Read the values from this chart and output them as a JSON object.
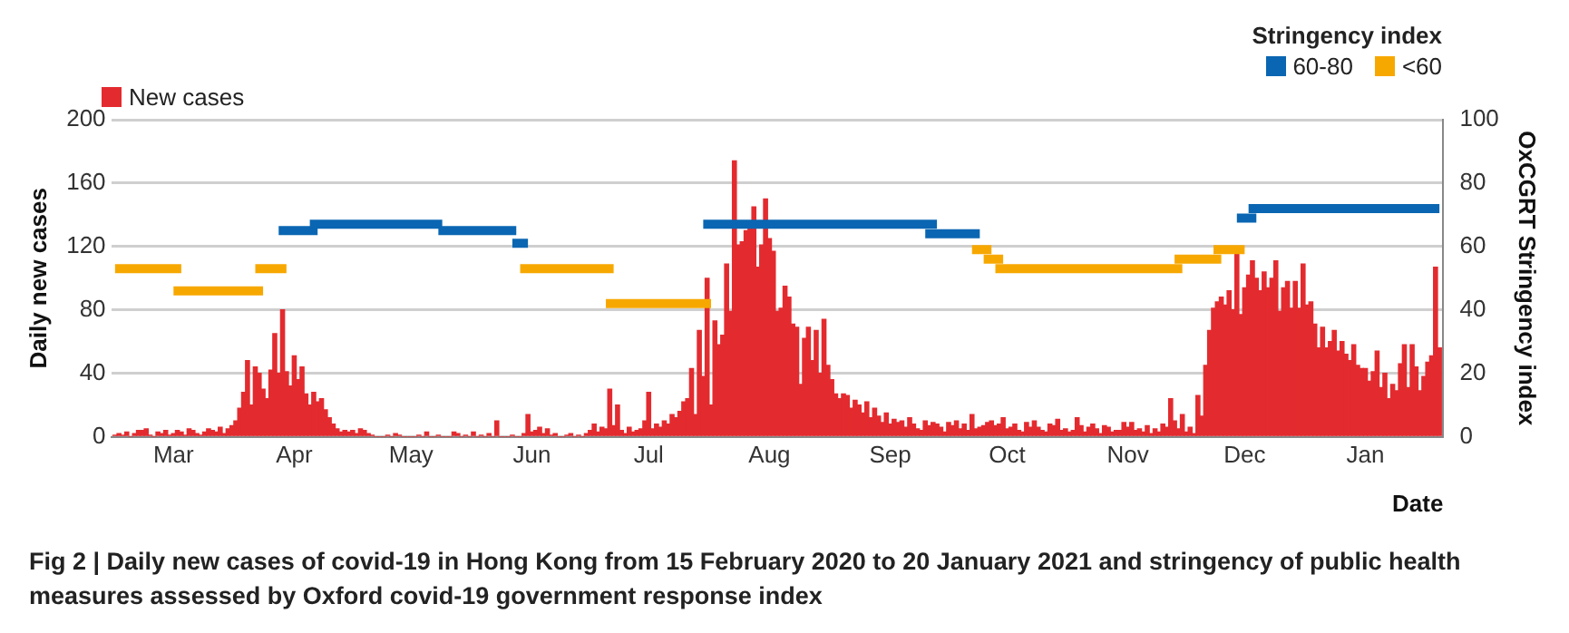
{
  "chart_data": {
    "type": "bar",
    "ylabel": "Daily new cases",
    "y2label": "OxCGRT Stringency index",
    "xlabel": "Date",
    "legend_title": "Stringency index",
    "annotations": [
      "Fig 2 | Daily new cases of covid-19 in Hong Kong from 15 February 2020 to 20 January 2021 and stringency of public health measures assessed by Oxford covid-19 government response index"
    ],
    "xlim": [
      "2020-02-14",
      "2021-01-21"
    ],
    "xticks": [
      {
        "value": "2020-03-01",
        "label": "Mar"
      },
      {
        "value": "2020-04-01",
        "label": "Apr"
      },
      {
        "value": "2020-05-01",
        "label": "May"
      },
      {
        "value": "2020-06-01",
        "label": "Jun"
      },
      {
        "value": "2020-07-01",
        "label": "Jul"
      },
      {
        "value": "2020-08-01",
        "label": "Aug"
      },
      {
        "value": "2020-09-01",
        "label": "Sep"
      },
      {
        "value": "2020-10-01",
        "label": "Oct"
      },
      {
        "value": "2020-11-01",
        "label": "Nov"
      },
      {
        "value": "2020-12-01",
        "label": "Dec"
      },
      {
        "value": "2021-01-01",
        "label": "Jan"
      }
    ],
    "ylim": [
      0,
      200
    ],
    "yticks": [
      0,
      40,
      80,
      120,
      160,
      200
    ],
    "y2lim": [
      0,
      100
    ],
    "y2ticks": [
      0,
      20,
      40,
      60,
      80,
      100
    ],
    "grid": "y",
    "legend": "top",
    "series": [
      {
        "name": "New cases",
        "color": "#e32b2f",
        "x": [
          "2020-02-15",
          "2020-02-16",
          "2020-02-17",
          "2020-02-18",
          "2020-02-19",
          "2020-02-20",
          "2020-02-21",
          "2020-02-22",
          "2020-02-23",
          "2020-02-24",
          "2020-02-25",
          "2020-02-26",
          "2020-02-27",
          "2020-02-28",
          "2020-02-29",
          "2020-03-01",
          "2020-03-02",
          "2020-03-03",
          "2020-03-04",
          "2020-03-05",
          "2020-03-06",
          "2020-03-07",
          "2020-03-08",
          "2020-03-09",
          "2020-03-10",
          "2020-03-11",
          "2020-03-12",
          "2020-03-13",
          "2020-03-14",
          "2020-03-15",
          "2020-03-16",
          "2020-03-17",
          "2020-03-18",
          "2020-03-19",
          "2020-03-20",
          "2020-03-21",
          "2020-03-22",
          "2020-03-23",
          "2020-03-24",
          "2020-03-25",
          "2020-03-26",
          "2020-03-27",
          "2020-03-28",
          "2020-03-29",
          "2020-03-30",
          "2020-03-31",
          "2020-04-01",
          "2020-04-02",
          "2020-04-03",
          "2020-04-04",
          "2020-04-05",
          "2020-04-06",
          "2020-04-07",
          "2020-04-08",
          "2020-04-09",
          "2020-04-10",
          "2020-04-11",
          "2020-04-12",
          "2020-04-13",
          "2020-04-14",
          "2020-04-15",
          "2020-04-16",
          "2020-04-17",
          "2020-04-18",
          "2020-04-19",
          "2020-04-20",
          "2020-04-21",
          "2020-04-22",
          "2020-04-23",
          "2020-04-24",
          "2020-04-25",
          "2020-04-26",
          "2020-04-27",
          "2020-04-28",
          "2020-04-29",
          "2020-04-30",
          "2020-05-01",
          "2020-05-02",
          "2020-05-03",
          "2020-05-04",
          "2020-05-05",
          "2020-05-06",
          "2020-05-07",
          "2020-05-08",
          "2020-05-09",
          "2020-05-10",
          "2020-05-11",
          "2020-05-12",
          "2020-05-13",
          "2020-05-14",
          "2020-05-15",
          "2020-05-16",
          "2020-05-17",
          "2020-05-18",
          "2020-05-19",
          "2020-05-20",
          "2020-05-21",
          "2020-05-22",
          "2020-05-23",
          "2020-05-24",
          "2020-05-25",
          "2020-05-26",
          "2020-05-27",
          "2020-05-28",
          "2020-05-29",
          "2020-05-30",
          "2020-05-31",
          "2020-06-01",
          "2020-06-02",
          "2020-06-03",
          "2020-06-04",
          "2020-06-05",
          "2020-06-06",
          "2020-06-07",
          "2020-06-08",
          "2020-06-09",
          "2020-06-10",
          "2020-06-11",
          "2020-06-12",
          "2020-06-13",
          "2020-06-14",
          "2020-06-15",
          "2020-06-16",
          "2020-06-17",
          "2020-06-18",
          "2020-06-19",
          "2020-06-20",
          "2020-06-21",
          "2020-06-22",
          "2020-06-23",
          "2020-06-24",
          "2020-06-25",
          "2020-06-26",
          "2020-06-27",
          "2020-06-28",
          "2020-06-29",
          "2020-06-30",
          "2020-07-01",
          "2020-07-02",
          "2020-07-03",
          "2020-07-04",
          "2020-07-05",
          "2020-07-06",
          "2020-07-07",
          "2020-07-08",
          "2020-07-09",
          "2020-07-10",
          "2020-07-11",
          "2020-07-12",
          "2020-07-13",
          "2020-07-14",
          "2020-07-15",
          "2020-07-16",
          "2020-07-17",
          "2020-07-18",
          "2020-07-19",
          "2020-07-20",
          "2020-07-21",
          "2020-07-22",
          "2020-07-23",
          "2020-07-24",
          "2020-07-25",
          "2020-07-26",
          "2020-07-27",
          "2020-07-28",
          "2020-07-29",
          "2020-07-30",
          "2020-07-31",
          "2020-08-01",
          "2020-08-02",
          "2020-08-03",
          "2020-08-04",
          "2020-08-05",
          "2020-08-06",
          "2020-08-07",
          "2020-08-08",
          "2020-08-09",
          "2020-08-10",
          "2020-08-11",
          "2020-08-12",
          "2020-08-13",
          "2020-08-14",
          "2020-08-15",
          "2020-08-16",
          "2020-08-17",
          "2020-08-18",
          "2020-08-19",
          "2020-08-20",
          "2020-08-21",
          "2020-08-22",
          "2020-08-23",
          "2020-08-24",
          "2020-08-25",
          "2020-08-26",
          "2020-08-27",
          "2020-08-28",
          "2020-08-29",
          "2020-08-30",
          "2020-08-31",
          "2020-09-01",
          "2020-09-02",
          "2020-09-03",
          "2020-09-04",
          "2020-09-05",
          "2020-09-06",
          "2020-09-07",
          "2020-09-08",
          "2020-09-09",
          "2020-09-10",
          "2020-09-11",
          "2020-09-12",
          "2020-09-13",
          "2020-09-14",
          "2020-09-15",
          "2020-09-16",
          "2020-09-17",
          "2020-09-18",
          "2020-09-19",
          "2020-09-20",
          "2020-09-21",
          "2020-09-22",
          "2020-09-23",
          "2020-09-24",
          "2020-09-25",
          "2020-09-26",
          "2020-09-27",
          "2020-09-28",
          "2020-09-29",
          "2020-09-30",
          "2020-10-01",
          "2020-10-02",
          "2020-10-03",
          "2020-10-04",
          "2020-10-05",
          "2020-10-06",
          "2020-10-07",
          "2020-10-08",
          "2020-10-09",
          "2020-10-10",
          "2020-10-11",
          "2020-10-12",
          "2020-10-13",
          "2020-10-14",
          "2020-10-15",
          "2020-10-16",
          "2020-10-17",
          "2020-10-18",
          "2020-10-19",
          "2020-10-20",
          "2020-10-21",
          "2020-10-22",
          "2020-10-23",
          "2020-10-24",
          "2020-10-25",
          "2020-10-26",
          "2020-10-27",
          "2020-10-28",
          "2020-10-29",
          "2020-10-30",
          "2020-10-31",
          "2020-11-01",
          "2020-11-02",
          "2020-11-03",
          "2020-11-04",
          "2020-11-05",
          "2020-11-06",
          "2020-11-07",
          "2020-11-08",
          "2020-11-09",
          "2020-11-10",
          "2020-11-11",
          "2020-11-12",
          "2020-11-13",
          "2020-11-14",
          "2020-11-15",
          "2020-11-16",
          "2020-11-17",
          "2020-11-18",
          "2020-11-19",
          "2020-11-20",
          "2020-11-21",
          "2020-11-22",
          "2020-11-23",
          "2020-11-24",
          "2020-11-25",
          "2020-11-26",
          "2020-11-27",
          "2020-11-28",
          "2020-11-29",
          "2020-11-30",
          "2020-12-01",
          "2020-12-02",
          "2020-12-03",
          "2020-12-04",
          "2020-12-05",
          "2020-12-06",
          "2020-12-07",
          "2020-12-08",
          "2020-12-09",
          "2020-12-10",
          "2020-12-11",
          "2020-12-12",
          "2020-12-13",
          "2020-12-14",
          "2020-12-15",
          "2020-12-16",
          "2020-12-17",
          "2020-12-18",
          "2020-12-19",
          "2020-12-20",
          "2020-12-21",
          "2020-12-22",
          "2020-12-23",
          "2020-12-24",
          "2020-12-25",
          "2020-12-26",
          "2020-12-27",
          "2020-12-28",
          "2020-12-29",
          "2020-12-30",
          "2020-12-31",
          "2021-01-01",
          "2021-01-02",
          "2021-01-03",
          "2021-01-04",
          "2021-01-05",
          "2021-01-06",
          "2021-01-07",
          "2021-01-08",
          "2021-01-09",
          "2021-01-10",
          "2021-01-11",
          "2021-01-12",
          "2021-01-13",
          "2021-01-14",
          "2021-01-15",
          "2021-01-16",
          "2021-01-17",
          "2021-01-18",
          "2021-01-19",
          "2021-01-20"
        ],
        "values": [
          1,
          2,
          1,
          3,
          0,
          2,
          4,
          4,
          5,
          1,
          0,
          3,
          2,
          4,
          1,
          2,
          4,
          3,
          1,
          5,
          4,
          2,
          1,
          3,
          5,
          4,
          3,
          6,
          2,
          5,
          7,
          10,
          18,
          28,
          48,
          20,
          44,
          40,
          30,
          24,
          42,
          65,
          40,
          80,
          41,
          32,
          51,
          36,
          44,
          27,
          20,
          28,
          22,
          24,
          17,
          12,
          8,
          5,
          3,
          4,
          3,
          4,
          2,
          5,
          4,
          2,
          1,
          0,
          0,
          0,
          1,
          0,
          2,
          1,
          0,
          0,
          0,
          0,
          1,
          0,
          3,
          0,
          0,
          1,
          0,
          0,
          0,
          3,
          2,
          0,
          1,
          0,
          3,
          0,
          1,
          0,
          2,
          0,
          10,
          0,
          0,
          0,
          1,
          0,
          0,
          2,
          14,
          3,
          4,
          6,
          2,
          5,
          1,
          2,
          0,
          0,
          1,
          2,
          0,
          1,
          0,
          2,
          4,
          8,
          3,
          6,
          5,
          30,
          7,
          20,
          4,
          2,
          6,
          3,
          4,
          5,
          10,
          28,
          5,
          8,
          6,
          10,
          8,
          14,
          12,
          16,
          22,
          24,
          43,
          14,
          67,
          38,
          100,
          20,
          73,
          58,
          64,
          109,
          79,
          174,
          121,
          123,
          130,
          131,
          145,
          107,
          121,
          150,
          125,
          117,
          79,
          81,
          95,
          88,
          71,
          69,
          33,
          62,
          69,
          48,
          67,
          40,
          74,
          45,
          36,
          27,
          24,
          27,
          26,
          18,
          23,
          20,
          15,
          22,
          12,
          18,
          13,
          9,
          15,
          8,
          11,
          9,
          10,
          6,
          12,
          8,
          5,
          4,
          10,
          7,
          9,
          8,
          6,
          3,
          9,
          7,
          10,
          5,
          8,
          4,
          14,
          5,
          6,
          7,
          9,
          10,
          7,
          8,
          12,
          5,
          6,
          8,
          4,
          3,
          9,
          6,
          10,
          6,
          4,
          3,
          8,
          7,
          11,
          4,
          5,
          3,
          4,
          12,
          7,
          3,
          6,
          8,
          5,
          2,
          7,
          6,
          3,
          4,
          4,
          9,
          6,
          9,
          4,
          5,
          3,
          7,
          2,
          5,
          3,
          8,
          6,
          24,
          10,
          5,
          14,
          3,
          6,
          2,
          26,
          13,
          45,
          67,
          81,
          85,
          88,
          83,
          92,
          80,
          117,
          77,
          94,
          102,
          111,
          100,
          92,
          104,
          94,
          100,
          111,
          79,
          94,
          98,
          81,
          98,
          81,
          109,
          83,
          85,
          71,
          56,
          69,
          56,
          60,
          67,
          54,
          60,
          52,
          48,
          58,
          45,
          43,
          43,
          35,
          41,
          54,
          31,
          40,
          24,
          33,
          29,
          46,
          58,
          31,
          58,
          44,
          29,
          38,
          47,
          51,
          107,
          56
        ]
      },
      {
        "name": "60-80",
        "type": "line",
        "axis": "y2",
        "color": "#0a66b2",
        "x": [
          "2020-03-28",
          "2020-04-07",
          "2020-04-05",
          "2020-05-09",
          "2020-05-08",
          "2020-05-28",
          "2020-05-27",
          "2020-05-31",
          "2020-07-15",
          "2020-09-13",
          "2020-09-10",
          "2020-09-24",
          "2020-11-29",
          "2020-12-04",
          "2020-12-02",
          "2021-01-20"
        ],
        "values": [
          65,
          65,
          67,
          67,
          65,
          65,
          61,
          61,
          67,
          67,
          64,
          64,
          69,
          69,
          72,
          72
        ]
      },
      {
        "name": "<60",
        "type": "line",
        "axis": "y2",
        "color": "#f7a800",
        "x": [
          "2020-02-15",
          "2020-03-03",
          "2020-03-01",
          "2020-03-24",
          "2020-03-22",
          "2020-03-30",
          "2020-05-29",
          "2020-06-22",
          "2020-06-20",
          "2020-07-17",
          "2020-09-22",
          "2020-09-27",
          "2020-09-25",
          "2020-09-30",
          "2020-09-28",
          "2020-11-15",
          "2020-11-13",
          "2020-11-25",
          "2020-11-23",
          "2020-12-01"
        ],
        "values": [
          53,
          53,
          46,
          46,
          53,
          53,
          53,
          53,
          42,
          42,
          59,
          59,
          56,
          56,
          53,
          53,
          56,
          56,
          59,
          59
        ]
      }
    ]
  }
}
